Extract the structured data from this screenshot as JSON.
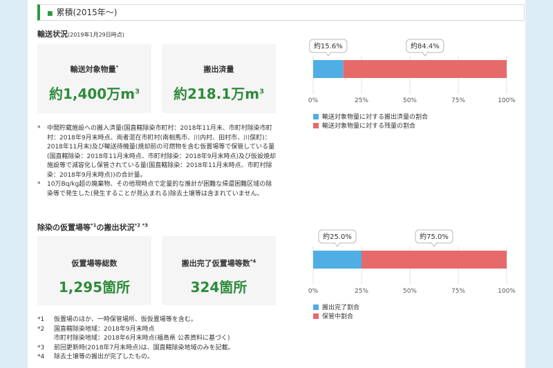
{
  "section_title": "累積(2015年～)",
  "section_marker": "■",
  "transport": {
    "heading": "輸送状況",
    "heading_date": "(2019年1月29日時点)",
    "card1_label": "輸送対象物量",
    "card1_mark": "*",
    "card1_value": "約1,400万m",
    "card1_sup": "3",
    "card2_label": "搬出済量",
    "card2_value": "約218.1万m",
    "card2_sup": "3",
    "notes": [
      {
        "key": "*",
        "text": "中間貯蔵施設への搬入済量(国直轄除染市町村：2018年11月末、市町村除染市町村：2018年9月末時点、両者混在市町村(南相馬市、川内村、田村市、川俣町)：2018年11月末)及び輸送待機量(焼却前の可燃物を含む仮置場等で保管している量(国直轄除染：2018年11月末時点、市町村除染：2018年9月末時点)及び仮設焼却施設等で減容化し保管されている量(国直轄除染：2018年11月末時点、市町村除染：2018年9月末時点))の合計量。"
      },
      {
        "key": "*",
        "text": "10万Bq/kg超の廃棄物、その他現時点で定量的な推計が困難な帰還困難区域の除染等で発生した(発生することが見込まれる)除去土壌等は含まれていません。"
      }
    ]
  },
  "storage": {
    "heading": "除染の仮置場等",
    "heading_sup1": "*1",
    "heading_mid": "の搬出状況",
    "heading_sup2": "*2 *3",
    "card1_label": "仮置場等総数",
    "card1_value": "1,295箇所",
    "card2_label": "搬出完了仮置場等数",
    "card2_mark": "*4",
    "card2_value": "324箇所",
    "notes": [
      {
        "key": "*1",
        "text": "仮置場のほか、一時保管場所、仮仮置場等を含む。"
      },
      {
        "key": "*2",
        "text": "国直轄除染地域：2018年9月末時点"
      },
      {
        "key": "",
        "text": "市町村除染地域：2018年6月末時点(福島県 公表資料に基づく)"
      },
      {
        "key": "*3",
        "text": "前回更新時(2018年7月末時点)は、国直轄除染地域のみを記載。"
      },
      {
        "key": "*4",
        "text": "除去土壌等の搬出が完了したもの。"
      }
    ]
  },
  "colors": {
    "blue": "#4faee3",
    "red": "#e76a6a",
    "green": "#2e8b3a"
  },
  "chart_data": [
    {
      "type": "bar",
      "orientation": "horizontal-stacked",
      "xlim": [
        0,
        100
      ],
      "tick_labels": [
        "0%",
        "25%",
        "50%",
        "75%",
        "100%"
      ],
      "series": [
        {
          "name": "輸送対象物量に対する搬出済量の割合",
          "value": 15.6,
          "label": "約15.6%",
          "color": "#4faee3"
        },
        {
          "name": "輸送対象物量に対する残量の割合",
          "value": 84.4,
          "label": "約84.4%",
          "color": "#e76a6a"
        }
      ],
      "legend": "bottom-left"
    },
    {
      "type": "bar",
      "orientation": "horizontal-stacked",
      "xlim": [
        0,
        100
      ],
      "tick_labels": [
        "0%",
        "25%",
        "50%",
        "75%",
        "100%"
      ],
      "series": [
        {
          "name": "搬出完了割合",
          "value": 25.0,
          "label": "約25.0%",
          "color": "#4faee3"
        },
        {
          "name": "保管中割合",
          "value": 75.0,
          "label": "約75.0%",
          "color": "#e76a6a"
        }
      ],
      "legend": "bottom-left"
    }
  ]
}
